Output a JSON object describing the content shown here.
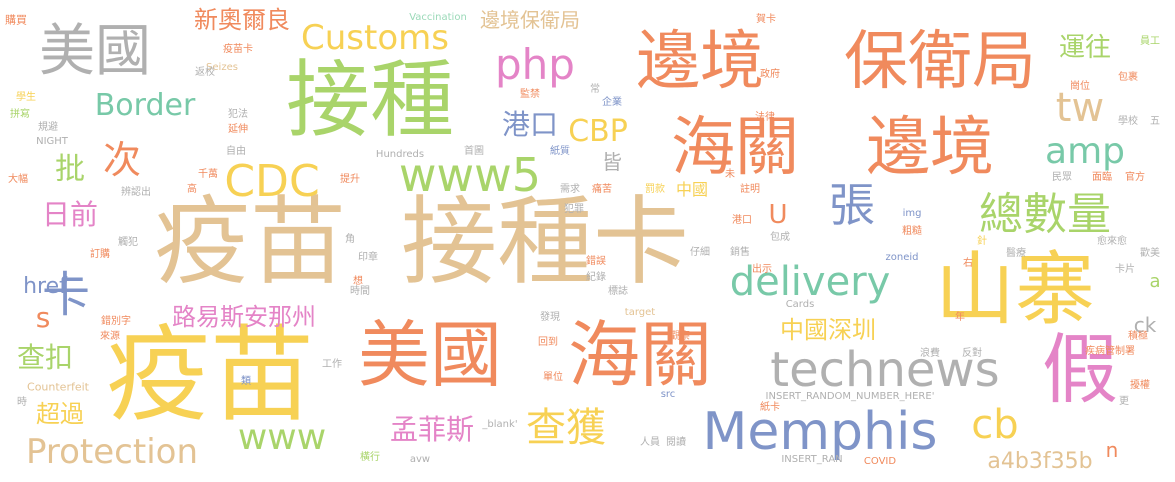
{
  "palette": {
    "beige": "#e3c394",
    "orange": "#f08a5d",
    "yellow": "#f7d154",
    "green": "#a9d46a",
    "teal": "#78c9a8",
    "blue": "#7f94c8",
    "pink": "#e484c7",
    "gray": "#b0b0b0",
    "mint": "#9ad9b8"
  },
  "words": [
    {
      "text": "疫苗",
      "color": "beige"
    },
    {
      "text": "接種卡",
      "color": "beige"
    },
    {
      "text": "疫苗",
      "color": "yellow"
    },
    {
      "text": "美國",
      "color": "orange"
    },
    {
      "text": "海關",
      "color": "orange"
    },
    {
      "text": "接種",
      "color": "green"
    },
    {
      "text": "邊境",
      "color": "orange"
    },
    {
      "text": "保衛局",
      "color": "orange"
    },
    {
      "text": "海關",
      "color": "orange"
    },
    {
      "text": "邊境",
      "color": "orange"
    },
    {
      "text": "山寨",
      "color": "yellow"
    },
    {
      "text": "美國",
      "color": "gray"
    },
    {
      "text": "假",
      "color": "pink"
    },
    {
      "text": "technews",
      "color": "gray"
    },
    {
      "text": "Memphis",
      "color": "blue"
    },
    {
      "text": "www5",
      "color": "green"
    },
    {
      "text": "delivery",
      "color": "teal"
    },
    {
      "text": "總數量",
      "color": "green"
    },
    {
      "text": "CDC",
      "color": "yellow"
    },
    {
      "text": "php",
      "color": "pink"
    },
    {
      "text": "amp",
      "color": "teal"
    },
    {
      "text": "Customs",
      "color": "yellow"
    },
    {
      "text": "Border",
      "color": "teal"
    },
    {
      "text": "Protection",
      "color": "beige"
    },
    {
      "text": "www",
      "color": "green"
    },
    {
      "text": "查獲",
      "color": "yellow"
    },
    {
      "text": "tw",
      "color": "beige"
    },
    {
      "text": "cb",
      "color": "yellow"
    },
    {
      "text": "卡",
      "color": "blue"
    },
    {
      "text": "張",
      "color": "blue"
    },
    {
      "text": "次",
      "color": "orange"
    },
    {
      "text": "CBP",
      "color": "yellow"
    },
    {
      "text": "港口",
      "color": "blue"
    },
    {
      "text": "中國深圳",
      "color": "yellow"
    },
    {
      "text": "孟菲斯",
      "color": "pink"
    },
    {
      "text": "路易斯安那州",
      "color": "pink"
    },
    {
      "text": "a4b3f35b",
      "color": "beige"
    },
    {
      "text": "日前",
      "color": "pink"
    },
    {
      "text": "批",
      "color": "green"
    },
    {
      "text": "查扣",
      "color": "green"
    },
    {
      "text": "超過",
      "color": "yellow"
    },
    {
      "text": "新奧爾良",
      "color": "orange"
    },
    {
      "text": "邊境保衛局",
      "color": "beige"
    },
    {
      "text": "運往",
      "color": "green"
    },
    {
      "text": "href",
      "color": "blue"
    },
    {
      "text": "s",
      "color": "orange"
    },
    {
      "text": "U",
      "color": "orange"
    },
    {
      "text": "ck",
      "color": "gray"
    },
    {
      "text": "n",
      "color": "orange"
    },
    {
      "text": "a",
      "color": "green"
    },
    {
      "text": "皆",
      "color": "gray"
    },
    {
      "text": "中國",
      "color": "yellow"
    },
    {
      "text": "Vaccination",
      "color": "mint"
    },
    {
      "text": "Seizes",
      "color": "beige"
    },
    {
      "text": "NIGHT",
      "color": "gray"
    },
    {
      "text": "Hundreds",
      "color": "gray"
    },
    {
      "text": "Counterfeit",
      "color": "beige"
    },
    {
      "text": "Cards",
      "color": "gray"
    },
    {
      "text": "target",
      "color": "beige"
    },
    {
      "text": "INSERT_RANDOM_NUMBER_HERE'",
      "color": "gray"
    },
    {
      "text": "INSERT_RAN",
      "color": "gray"
    },
    {
      "text": "zoneid",
      "color": "blue"
    },
    {
      "text": "img",
      "color": "blue"
    },
    {
      "text": "src",
      "color": "blue"
    },
    {
      "text": "_blank'",
      "color": "gray"
    },
    {
      "text": "avw",
      "color": "gray"
    },
    {
      "text": "COVID",
      "color": "orange"
    },
    {
      "text": "購買",
      "color": "orange"
    },
    {
      "text": "疫苗卡",
      "color": "orange"
    },
    {
      "text": "返校",
      "color": "gray"
    },
    {
      "text": "學生",
      "color": "yellow"
    },
    {
      "text": "拼寫",
      "color": "green"
    },
    {
      "text": "規避",
      "color": "gray"
    },
    {
      "text": "犯法",
      "color": "gray"
    },
    {
      "text": "延伸",
      "color": "orange"
    },
    {
      "text": "監禁",
      "color": "orange"
    },
    {
      "text": "常",
      "color": "gray"
    },
    {
      "text": "企業",
      "color": "blue"
    },
    {
      "text": "政府",
      "color": "orange"
    },
    {
      "text": "法律",
      "color": "orange"
    },
    {
      "text": "賀卡",
      "color": "orange"
    },
    {
      "text": "員工",
      "color": "green"
    },
    {
      "text": "崗位",
      "color": "orange"
    },
    {
      "text": "包裹",
      "color": "orange"
    },
    {
      "text": "學校",
      "color": "gray"
    },
    {
      "text": "五",
      "color": "gray"
    },
    {
      "text": "民眾",
      "color": "gray"
    },
    {
      "text": "官方",
      "color": "orange"
    },
    {
      "text": "面臨",
      "color": "orange"
    },
    {
      "text": "醫療",
      "color": "gray"
    },
    {
      "text": "大幅",
      "color": "orange"
    },
    {
      "text": "自由",
      "color": "gray"
    },
    {
      "text": "首圖",
      "color": "gray"
    },
    {
      "text": "紙質",
      "color": "blue"
    },
    {
      "text": "痛苦",
      "color": "orange"
    },
    {
      "text": "需求",
      "color": "gray"
    },
    {
      "text": "罰款",
      "color": "yellow"
    },
    {
      "text": "未",
      "color": "orange"
    },
    {
      "text": "註明",
      "color": "orange"
    },
    {
      "text": "犯罪",
      "color": "gray"
    },
    {
      "text": "千萬",
      "color": "orange"
    },
    {
      "text": "高",
      "color": "orange"
    },
    {
      "text": "提升",
      "color": "orange"
    },
    {
      "text": "辨認出",
      "color": "gray"
    },
    {
      "text": "港口",
      "color": "orange"
    },
    {
      "text": "包成",
      "color": "gray"
    },
    {
      "text": "粗糙",
      "color": "orange"
    },
    {
      "text": "針",
      "color": "yellow"
    },
    {
      "text": "愈來愈",
      "color": "gray"
    },
    {
      "text": "歡美",
      "color": "gray"
    },
    {
      "text": "卡片",
      "color": "gray"
    },
    {
      "text": "右",
      "color": "orange"
    },
    {
      "text": "年",
      "color": "orange"
    },
    {
      "text": "觸犯",
      "color": "gray"
    },
    {
      "text": "訂購",
      "color": "orange"
    },
    {
      "text": "角",
      "color": "gray"
    },
    {
      "text": "印章",
      "color": "gray"
    },
    {
      "text": "錯誤",
      "color": "orange"
    },
    {
      "text": "紀錄",
      "color": "gray"
    },
    {
      "text": "標誌",
      "color": "gray"
    },
    {
      "text": "仔細",
      "color": "gray"
    },
    {
      "text": "銷售",
      "color": "gray"
    },
    {
      "text": "出示",
      "color": "orange"
    },
    {
      "text": "想",
      "color": "orange"
    },
    {
      "text": "時間",
      "color": "gray"
    },
    {
      "text": "錯別字",
      "color": "orange"
    },
    {
      "text": "來源",
      "color": "orange"
    },
    {
      "text": "發現",
      "color": "gray"
    },
    {
      "text": "觀察",
      "color": "orange"
    },
    {
      "text": "回到",
      "color": "orange"
    },
    {
      "text": "工作",
      "color": "gray"
    },
    {
      "text": "類",
      "color": "blue"
    },
    {
      "text": "單位",
      "color": "orange"
    },
    {
      "text": "浪費",
      "color": "gray"
    },
    {
      "text": "反對",
      "color": "gray"
    },
    {
      "text": "疾病管制署",
      "color": "orange"
    },
    {
      "text": "積極",
      "color": "orange"
    },
    {
      "text": "擾權",
      "color": "orange"
    },
    {
      "text": "紙卡",
      "color": "orange"
    },
    {
      "text": "更",
      "color": "gray"
    },
    {
      "text": "時",
      "color": "gray"
    },
    {
      "text": "人員",
      "color": "gray"
    },
    {
      "text": "閱讀",
      "color": "gray"
    },
    {
      "text": "橫行",
      "color": "green"
    }
  ]
}
